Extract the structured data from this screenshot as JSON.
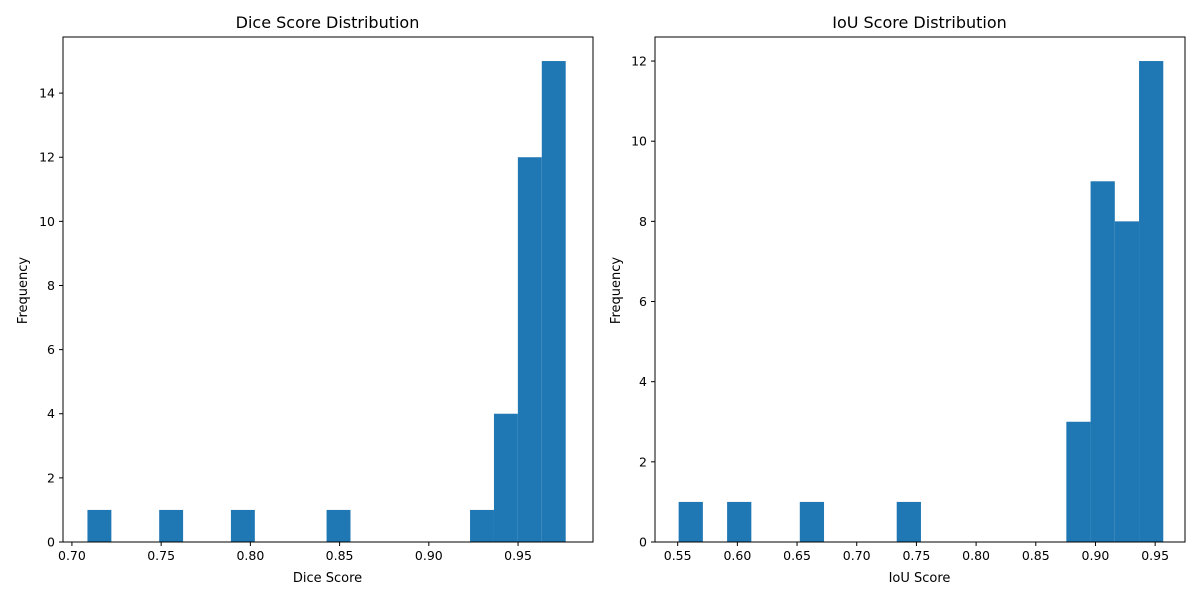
{
  "chart_data": [
    {
      "type": "bar",
      "title": "Dice Score Distribution",
      "xlabel": "Dice Score",
      "ylabel": "Frequency",
      "xlim": [
        0.695,
        0.992
      ],
      "ylim": [
        0,
        15.75
      ],
      "xticks": [
        "0.70",
        "0.75",
        "0.80",
        "0.85",
        "0.90",
        "0.95"
      ],
      "yticks": [
        "0",
        "2",
        "4",
        "6",
        "8",
        "10",
        "12",
        "14"
      ],
      "bins": [
        {
          "start": 0.7087,
          "end": 0.7221,
          "count": 1
        },
        {
          "start": 0.7489,
          "end": 0.7623,
          "count": 1
        },
        {
          "start": 0.7891,
          "end": 0.8025,
          "count": 1
        },
        {
          "start": 0.8427,
          "end": 0.8561,
          "count": 1
        },
        {
          "start": 0.9231,
          "end": 0.9365,
          "count": 1
        },
        {
          "start": 0.9365,
          "end": 0.9499,
          "count": 4
        },
        {
          "start": 0.9499,
          "end": 0.9633,
          "count": 12
        },
        {
          "start": 0.9633,
          "end": 0.9767,
          "count": 15
        }
      ],
      "color": "#1f77b4"
    },
    {
      "type": "bar",
      "title": "IoU Score Distribution",
      "xlabel": "IoU Score",
      "ylabel": "Frequency",
      "xlim": [
        0.531,
        0.975
      ],
      "ylim": [
        0,
        12.6
      ],
      "xticks": [
        "0.55",
        "0.60",
        "0.65",
        "0.70",
        "0.75",
        "0.80",
        "0.85",
        "0.90",
        "0.95"
      ],
      "yticks": [
        "0",
        "2",
        "4",
        "6",
        "8",
        "10",
        "12"
      ],
      "bins": [
        {
          "start": 0.5508,
          "end": 0.5711,
          "count": 1
        },
        {
          "start": 0.5914,
          "end": 0.6117,
          "count": 1
        },
        {
          "start": 0.6523,
          "end": 0.6726,
          "count": 1
        },
        {
          "start": 0.7335,
          "end": 0.7538,
          "count": 1
        },
        {
          "start": 0.8756,
          "end": 0.8959,
          "count": 3
        },
        {
          "start": 0.8959,
          "end": 0.9162,
          "count": 9
        },
        {
          "start": 0.9162,
          "end": 0.9365,
          "count": 8
        },
        {
          "start": 0.9365,
          "end": 0.9568,
          "count": 12
        }
      ],
      "color": "#1f77b4"
    }
  ]
}
